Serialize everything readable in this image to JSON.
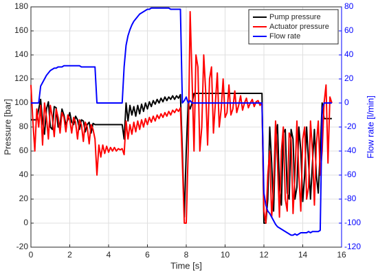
{
  "chart_data": {
    "type": "line",
    "xlabel": "Time [s]",
    "ylabel": "Pressure [bar]",
    "y2label": "Flow rate [l/min]",
    "xlim": [
      0,
      16
    ],
    "xticks": [
      0,
      2,
      4,
      6,
      8,
      10,
      12,
      14,
      16
    ],
    "ylim": [
      -20,
      180
    ],
    "yticks": [
      -20,
      0,
      20,
      40,
      60,
      80,
      100,
      120,
      140,
      160,
      180
    ],
    "y2lim": [
      -120,
      80
    ],
    "y2ticks": [
      -120,
      -100,
      -80,
      -60,
      -40,
      -20,
      0,
      20,
      40,
      60,
      80
    ],
    "y2color": "#0000ff",
    "grid": true,
    "legend": "upper right",
    "x": [
      0,
      0.1,
      0.2,
      0.3,
      0.4,
      0.5,
      0.6,
      0.7,
      0.8,
      0.9,
      1,
      1.1,
      1.2,
      1.3,
      1.4,
      1.5,
      1.6,
      1.7,
      1.8,
      1.9,
      2,
      2.1,
      2.2,
      2.3,
      2.4,
      2.5,
      2.6,
      2.7,
      2.8,
      2.9,
      3,
      3.1,
      3.2,
      3.3,
      3.4,
      3.5,
      3.6,
      3.7,
      3.8,
      3.9,
      4,
      4.1,
      4.2,
      4.3,
      4.4,
      4.5,
      4.6,
      4.7,
      4.8,
      4.9,
      5,
      5.1,
      5.2,
      5.3,
      5.4,
      5.5,
      5.6,
      5.7,
      5.8,
      5.9,
      6,
      6.1,
      6.2,
      6.3,
      6.4,
      6.5,
      6.6,
      6.7,
      6.8,
      6.9,
      7,
      7.1,
      7.2,
      7.3,
      7.4,
      7.5,
      7.6,
      7.7,
      7.8,
      7.9,
      8,
      8.1,
      8.2,
      8.3,
      8.4,
      8.5,
      8.6,
      8.7,
      8.8,
      8.9,
      9,
      9.1,
      9.2,
      9.3,
      9.4,
      9.5,
      9.6,
      9.7,
      9.8,
      9.9,
      10,
      10.1,
      10.2,
      10.3,
      10.4,
      10.5,
      10.6,
      10.7,
      10.8,
      10.9,
      11,
      11.1,
      11.2,
      11.3,
      11.4,
      11.5,
      11.6,
      11.7,
      11.8,
      11.9,
      12,
      12.1,
      12.2,
      12.3,
      12.4,
      12.5,
      12.6,
      12.7,
      12.8,
      12.9,
      13,
      13.1,
      13.2,
      13.3,
      13.4,
      13.5,
      13.6,
      13.7,
      13.8,
      13.9,
      14,
      14.1,
      14.2,
      14.3,
      14.4,
      14.5,
      14.6,
      14.7,
      14.8,
      14.9,
      15,
      15.1,
      15.2,
      15.3,
      15.4,
      15.5
    ],
    "series": [
      {
        "name": "Pump pressure",
        "color": "#000000",
        "values": [
          86,
          86,
          86,
          86,
          95,
          103,
          85,
          74,
          95,
          101,
          80,
          78,
          97,
          96,
          80,
          82,
          95,
          90,
          82,
          86,
          92,
          84,
          82,
          89,
          86,
          78,
          86,
          85,
          76,
          82,
          84,
          75,
          83,
          82,
          82,
          82,
          82,
          82,
          82,
          82,
          82,
          82,
          82,
          82,
          82,
          82,
          82,
          82,
          70,
          100,
          85,
          98,
          90,
          97,
          89,
          98,
          91,
          99,
          93,
          100,
          95,
          101,
          97,
          102,
          99,
          103,
          100,
          104,
          101,
          105,
          102,
          105,
          103,
          106,
          103,
          106,
          104,
          107,
          60,
          5,
          60,
          100,
          95,
          100,
          108,
          108,
          108,
          108,
          108,
          108,
          108,
          108,
          108,
          108,
          108,
          108,
          108,
          108,
          108,
          108,
          108,
          108,
          108,
          108,
          108,
          108,
          108,
          108,
          108,
          108,
          108,
          108,
          108,
          108,
          108,
          108,
          108,
          108,
          108,
          108,
          0,
          0,
          20,
          80,
          50,
          10,
          70,
          82,
          30,
          15,
          75,
          78,
          25,
          20,
          78,
          70,
          20,
          30,
          80,
          60,
          18,
          40,
          80,
          50,
          20,
          50,
          78,
          40,
          25,
          60,
          100,
          87,
          87,
          87,
          87,
          87
        ]
      },
      {
        "name": "Actuator pressure",
        "color": "#ff0000",
        "values": [
          115,
          85,
          60,
          95,
          80,
          98,
          65,
          100,
          88,
          70,
          98,
          88,
          72,
          95,
          88,
          75,
          92,
          88,
          76,
          90,
          86,
          75,
          88,
          84,
          70,
          86,
          82,
          68,
          84,
          80,
          66,
          82,
          78,
          70,
          40,
          65,
          55,
          65,
          58,
          64,
          59,
          63,
          60,
          63,
          60,
          62,
          61,
          62,
          57,
          85,
          70,
          82,
          74,
          84,
          76,
          85,
          78,
          86,
          80,
          87,
          82,
          88,
          84,
          89,
          85,
          90,
          87,
          91,
          88,
          92,
          89,
          93,
          90,
          94,
          92,
          95,
          93,
          96,
          50,
          0,
          0,
          60,
          176,
          120,
          60,
          140,
          130,
          60,
          80,
          140,
          110,
          65,
          120,
          130,
          75,
          100,
          125,
          80,
          95,
          120,
          88,
          92,
          115,
          90,
          95,
          110,
          92,
          98,
          106,
          94,
          100,
          104,
          96,
          100,
          103,
          97,
          101,
          102,
          98,
          100,
          10,
          0,
          40,
          60,
          5,
          30,
          85,
          50,
          5,
          60,
          80,
          20,
          10,
          75,
          70,
          8,
          40,
          85,
          40,
          10,
          70,
          80,
          20,
          30,
          85,
          60,
          15,
          65,
          85,
          40,
          60,
          100,
          115,
          50,
          105,
          100
        ]
      },
      {
        "name": "Flow rate",
        "color": "#0000ff",
        "axis": "y2",
        "values": [
          0,
          0,
          0,
          0,
          0,
          14,
          17,
          20,
          23,
          25,
          27,
          28,
          29,
          29,
          30,
          30,
          30,
          31,
          31,
          31,
          31,
          31,
          31,
          31,
          31,
          31,
          30,
          30,
          30,
          30,
          30,
          30,
          30,
          30,
          0,
          0,
          0,
          0,
          0,
          0,
          0,
          0,
          0,
          0,
          0,
          0,
          0,
          0,
          30,
          48,
          56,
          61,
          65,
          68,
          70,
          72,
          74,
          75,
          76,
          77,
          78,
          78,
          79,
          79,
          79,
          79,
          79,
          79,
          79,
          79,
          79,
          79,
          78,
          78,
          78,
          78,
          78,
          78,
          0,
          2,
          5,
          0,
          2,
          0,
          0,
          0,
          0,
          0,
          0,
          0,
          0,
          0,
          0,
          0,
          0,
          0,
          0,
          0,
          0,
          0,
          0,
          0,
          0,
          0,
          0,
          0,
          0,
          0,
          0,
          0,
          0,
          0,
          0,
          0,
          0,
          0,
          0,
          0,
          0,
          0,
          -75,
          -85,
          -90,
          -92,
          -95,
          -98,
          -101,
          -103,
          -104,
          -105,
          -106,
          -107,
          -108,
          -109,
          -110,
          -110,
          -109,
          -110,
          -109,
          -108,
          -108,
          -108,
          -108,
          -107,
          -108,
          -107,
          -107,
          -107,
          -107,
          -106,
          -5,
          0,
          0,
          0,
          0,
          0
        ]
      }
    ]
  }
}
